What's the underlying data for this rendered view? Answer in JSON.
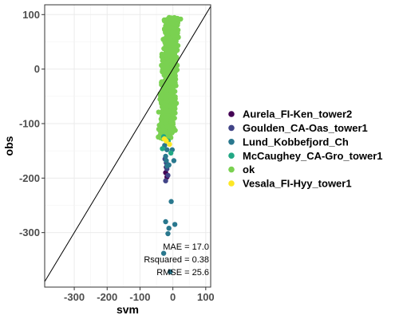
{
  "chart_data": {
    "type": "scatter",
    "xlabel": "svm",
    "ylabel": "obs",
    "xlim": [
      -390,
      115
    ],
    "ylim": [
      -400,
      118
    ],
    "x_ticks": [
      -300,
      -200,
      -100,
      0,
      100
    ],
    "x_tick_labels": [
      "-300",
      "-200",
      "-100",
      "0",
      "100"
    ],
    "y_ticks": [
      -300,
      -200,
      -100,
      0,
      100
    ],
    "y_tick_labels": [
      "-300",
      "-200",
      "-100",
      "0",
      "100"
    ],
    "grid": true,
    "reference_line": "y = x",
    "legend_position": "right",
    "annotations": [
      "MAE = 17.0",
      "Rsquared = 0.38",
      "RMSE = 25.6"
    ],
    "series": [
      {
        "name": "Aurela_FI-Ken_tower2",
        "color": "#440154",
        "points": [
          [
            -18,
            -198
          ],
          [
            -22,
            -190
          ],
          [
            -20,
            -180
          ]
        ]
      },
      {
        "name": "Goulden_CA-Oas_tower1",
        "color": "#414487",
        "points": [
          [
            -20,
            -172
          ],
          [
            -18,
            -183
          ],
          [
            -22,
            -205
          ],
          [
            -15,
            -195
          ],
          [
            -24,
            -165
          ]
        ]
      },
      {
        "name": "Lund_Kobbefjord_Ch",
        "color": "#2A788E",
        "points": [
          [
            -25,
            -140
          ],
          [
            -18,
            -148
          ],
          [
            -22,
            -160
          ],
          [
            -20,
            -168
          ],
          [
            -12,
            -176
          ],
          [
            -2,
            -148
          ],
          [
            3,
            -168
          ],
          [
            -5,
            -243
          ],
          [
            -22,
            -280
          ],
          [
            6,
            -285
          ],
          [
            -12,
            -292
          ],
          [
            -15,
            -302
          ],
          [
            -28,
            -338
          ],
          [
            -8,
            -372
          ],
          [
            -18,
            -178
          ]
        ]
      },
      {
        "name": "McCaughey_CA-Gro_tower1",
        "color": "#22A884",
        "points": [
          [
            -28,
            -124
          ],
          [
            -14,
            -132
          ],
          [
            -32,
            -146
          ],
          [
            -6,
            -154
          ]
        ]
      },
      {
        "name": "ok",
        "color": "#7AD151",
        "points": []
      },
      {
        "name": "Vesala_FI-Hyy_tower1",
        "color": "#FDE725",
        "points": [
          [
            -20,
            -132
          ],
          [
            -26,
            -128
          ],
          [
            -10,
            -138
          ]
        ]
      }
    ],
    "ok_cloud": {
      "x_center": -10,
      "x_spread": 22,
      "y_range": [
        -128,
        95
      ],
      "count": 1200
    }
  }
}
